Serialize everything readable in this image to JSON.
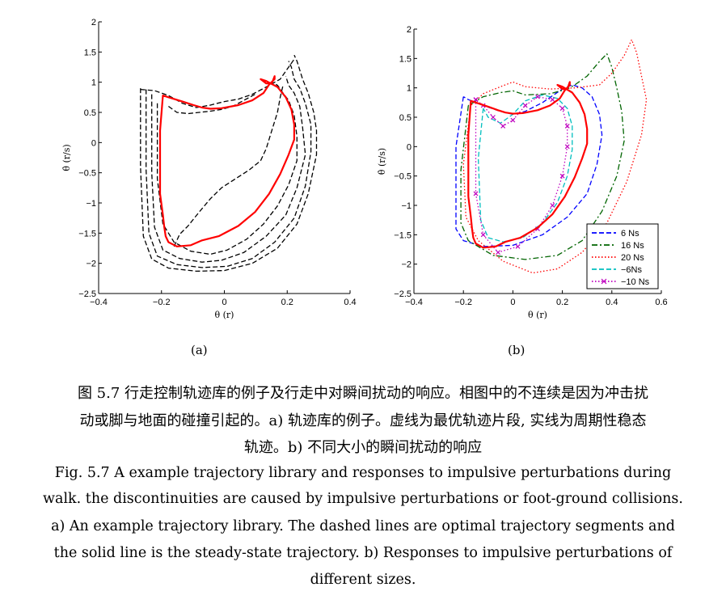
{
  "figure": {
    "sublabel_a": "(a)",
    "sublabel_b": "(b)",
    "caption_zh_1": "图 5.7 行走控制轨迹库的例子及行走中对瞬间扰动的响应。相图中的不连续是因为冲击扰",
    "caption_zh_2": "动或脚与地面的碰撞引起的。a) 轨迹库的例子。虚线为最优轨迹片段, 实线为周期性稳态",
    "caption_zh_3": "轨迹。b) 不同大小的瞬间扰动的响应",
    "caption_en_1": "Fig. 5.7 A example trajectory library and responses to impulsive perturbations during",
    "caption_en_2": "walk. the discontinuities are caused by impulsive perturbations or foot-ground collisions.",
    "caption_en_3": "a) An example trajectory library. The dashed lines are optimal trajectory segments and",
    "caption_en_4": "the solid line is the steady-state trajectory. b) Responses to impulsive perturbations of",
    "caption_en_5": "different sizes."
  },
  "colors": {
    "steady": "#ff0000",
    "library": "#000000",
    "s6": "#0000ff",
    "s16": "#006400",
    "s20": "#ff0000",
    "sm6": "#00bfbf",
    "sm10": "#bf00bf"
  },
  "chart_data": [
    {
      "type": "line",
      "xlabel": "θ (r)",
      "ylabel": "θ̇ (r/s)",
      "xlim": [
        -0.4,
        0.5
      ],
      "ylim": [
        -2.5,
        2
      ],
      "xticks": [
        "−0.4",
        "−0.2",
        "0",
        "0.2",
        "0.4"
      ],
      "yticks": [
        "−2.5",
        "−2",
        "−1.5",
        "−1",
        "−0.5",
        "0",
        "0.5",
        "1",
        "1.5",
        "2"
      ],
      "grid": false,
      "series": [
        {
          "style": "solid",
          "color": "red",
          "x": [
            -0.18,
            -0.17,
            -0.165,
            -0.16,
            -0.15,
            -0.12,
            -0.07,
            -0.03,
            0.03,
            0.1,
            0.16,
            0.21,
            0.25,
            0.28,
            0.3,
            0.3,
            0.29,
            0.27,
            0.24,
            0.2,
            0.18,
            0.2,
            0.22,
            0.23,
            0.23,
            0.21,
            0.19,
            0.15,
            0.1,
            0.04,
            0,
            -0.03,
            -0.06,
            -0.1,
            -0.15,
            -0.17,
            -0.18,
            -0.18
          ],
          "y": [
            -0.85,
            -1.2,
            -1.4,
            -1.55,
            -1.65,
            -1.72,
            -1.7,
            -1.62,
            -1.55,
            -1.38,
            -1.15,
            -0.85,
            -0.52,
            -0.2,
            0.05,
            0.3,
            0.55,
            0.75,
            0.92,
            1.02,
            1.05,
            0.98,
            0.98,
            1.1,
            1.05,
            0.96,
            0.82,
            0.7,
            0.62,
            0.57,
            0.56,
            0.58,
            0.62,
            0.68,
            0.75,
            0.78,
            0.2,
            -0.85
          ]
        },
        {
          "style": "dashed",
          "color": "black",
          "x": [
            -0.13,
            -0.11,
            -0.08,
            -0.04,
            0,
            0.04,
            0.09,
            0.14,
            0.18,
            0.2,
            0.22,
            0.24,
            0.25,
            0.26
          ],
          "y": [
            -1.72,
            -1.52,
            -1.38,
            -1.15,
            -0.93,
            -0.75,
            -0.6,
            -0.45,
            -0.3,
            -0.1,
            0.2,
            0.5,
            0.75,
            0.95
          ]
        },
        {
          "style": "dashed",
          "color": "black",
          "x": [
            -0.19,
            -0.19,
            -0.17,
            -0.13,
            -0.07,
            0,
            0.06,
            0.13,
            0.19,
            0.24,
            0.28,
            0.31,
            0.31,
            0.3,
            0.28,
            0.26,
            0.24,
            0.22
          ],
          "y": [
            0.65,
            -0.6,
            -1.35,
            -1.65,
            -1.8,
            -1.85,
            -1.78,
            -1.6,
            -1.35,
            -1.05,
            -0.7,
            -0.3,
            0.1,
            0.45,
            0.7,
            0.82,
            0.95,
            1.0
          ]
        },
        {
          "style": "dashed",
          "color": "black",
          "x": [
            -0.21,
            -0.21,
            -0.2,
            -0.17,
            -0.11,
            -0.03,
            0.04,
            0.12,
            0.2,
            0.27,
            0.31,
            0.34,
            0.33,
            0.32,
            0.3,
            0.28,
            0.27
          ],
          "y": [
            0.8,
            -0.5,
            -1.4,
            -1.78,
            -1.92,
            -1.98,
            -1.95,
            -1.82,
            -1.55,
            -1.2,
            -0.75,
            -0.2,
            0.25,
            0.6,
            0.82,
            0.95,
            1.1
          ]
        },
        {
          "style": "dashed",
          "color": "black",
          "x": [
            -0.23,
            -0.23,
            -0.22,
            -0.19,
            -0.12,
            -0.03,
            0.06,
            0.15,
            0.23,
            0.3,
            0.34,
            0.36,
            0.36,
            0.34,
            0.32,
            0.3,
            0.29,
            0.28
          ],
          "y": [
            0.88,
            -0.45,
            -1.5,
            -1.88,
            -2.02,
            -2.07,
            -2.05,
            -1.92,
            -1.65,
            -1.25,
            -0.72,
            -0.15,
            0.3,
            0.65,
            0.9,
            1.05,
            1.25,
            1.35
          ]
        },
        {
          "style": "dashed",
          "color": "black",
          "x": [
            -0.25,
            -0.25,
            -0.24,
            -0.21,
            -0.15,
            -0.05,
            0.05,
            0.15,
            0.24,
            0.31,
            0.35,
            0.38,
            0.38,
            0.37,
            0.35,
            0.33,
            0.31,
            0.3
          ],
          "y": [
            0.9,
            -0.4,
            -1.55,
            -1.93,
            -2.08,
            -2.13,
            -2.12,
            -2.0,
            -1.75,
            -1.35,
            -0.85,
            -0.2,
            0.2,
            0.5,
            0.82,
            1.05,
            1.35,
            1.45
          ]
        },
        {
          "style": "dashed",
          "color": "black",
          "x": [
            -0.25,
            -0.2,
            -0.15,
            -0.1,
            -0.05,
            0,
            0.05,
            0.1,
            0.15,
            0.2,
            0.25,
            0.28,
            0.3
          ],
          "y": [
            0.88,
            0.86,
            0.78,
            0.65,
            0.58,
            0.62,
            0.68,
            0.72,
            0.8,
            0.92,
            1.05,
            1.25,
            1.38
          ]
        },
        {
          "style": "dashed",
          "color": "black",
          "x": [
            -0.15,
            -0.12,
            -0.08,
            -0.04,
            0,
            0.04,
            0.08,
            0.12,
            0.16
          ],
          "y": [
            0.6,
            0.5,
            0.48,
            0.5,
            0.52,
            0.55,
            0.6,
            0.7,
            0.8
          ]
        }
      ]
    },
    {
      "type": "line",
      "xlabel": "θ (r)",
      "ylabel": "θ̇ (r/s)",
      "xlim": [
        -0.4,
        0.6
      ],
      "ylim": [
        -2.5,
        2
      ],
      "xticks": [
        "−0.4",
        "−0.2",
        "0",
        "0.2",
        "0.4",
        "0.6"
      ],
      "yticks": [
        "−2.5",
        "−2",
        "−1.5",
        "−1",
        "−0.5",
        "0",
        "0.5",
        "1",
        "1.5",
        "2"
      ],
      "grid": false,
      "legend": {
        "placement": "bottom-right",
        "entries": [
          "6 Ns",
          "16 Ns",
          "20 Ns",
          "−6Ns",
          "−10 Ns"
        ]
      },
      "series": [
        {
          "name": "6 Ns",
          "style": "dashed",
          "color": "blue",
          "x": [
            -0.2,
            -0.23,
            -0.23,
            -0.2,
            -0.12,
            0,
            0.12,
            0.22,
            0.3,
            0.34,
            0.36,
            0.35,
            0.32,
            0.28,
            0.24,
            0.2,
            0.12,
            0.05,
            0,
            -0.05,
            -0.12,
            -0.18,
            -0.2
          ],
          "y": [
            0.85,
            0,
            -1.4,
            -1.6,
            -1.7,
            -1.68,
            -1.5,
            -1.2,
            -0.8,
            -0.3,
            0.2,
            0.55,
            0.85,
            1.0,
            1.05,
            0.98,
            0.75,
            0.6,
            0.55,
            0.6,
            0.7,
            0.8,
            0.85
          ]
        },
        {
          "name": "16 Ns",
          "style": "dashdot",
          "color": "green",
          "x": [
            -0.18,
            -0.21,
            -0.21,
            -0.18,
            -0.08,
            0.05,
            0.18,
            0.28,
            0.36,
            0.42,
            0.45,
            0.44,
            0.42,
            0.4,
            0.38,
            0.35,
            0.3,
            0.25,
            0.22,
            0.15,
            0.05,
            0,
            -0.05,
            -0.12,
            -0.18
          ],
          "y": [
            0.7,
            -0.4,
            -1.3,
            -1.6,
            -1.85,
            -1.92,
            -1.85,
            -1.6,
            -1.1,
            -0.5,
            0.1,
            0.6,
            1.0,
            1.35,
            1.58,
            1.45,
            1.2,
            1.05,
            0.98,
            0.9,
            0.88,
            0.95,
            0.92,
            0.85,
            0.7
          ]
        },
        {
          "name": "20 Ns",
          "style": "dotted",
          "color": "red",
          "x": [
            -0.17,
            -0.2,
            -0.19,
            -0.14,
            -0.04,
            0.08,
            0.18,
            0.28,
            0.38,
            0.46,
            0.52,
            0.54,
            0.52,
            0.5,
            0.48,
            0.45,
            0.4,
            0.35,
            0.25,
            0.15,
            0.05,
            0,
            -0.05,
            -0.12,
            -0.17
          ],
          "y": [
            0.7,
            -0.3,
            -1.2,
            -1.6,
            -1.95,
            -2.15,
            -2.08,
            -1.8,
            -1.3,
            -0.6,
            0.2,
            0.8,
            1.2,
            1.6,
            1.82,
            1.55,
            1.25,
            1.05,
            1.0,
            0.98,
            1.02,
            1.1,
            1.02,
            0.9,
            0.7
          ]
        },
        {
          "name": "−6Ns",
          "style": "dashed",
          "color": "cyan",
          "x": [
            -0.12,
            -0.14,
            -0.13,
            -0.1,
            -0.04,
            0.04,
            0.12,
            0.18,
            0.22,
            0.24,
            0.24,
            0.22,
            0.18,
            0.12,
            0.05,
            0,
            -0.05,
            -0.1,
            -0.12
          ],
          "y": [
            0.65,
            -0.2,
            -1.25,
            -1.55,
            -1.62,
            -1.55,
            -1.3,
            -0.95,
            -0.5,
            -0.05,
            0.35,
            0.65,
            0.82,
            0.88,
            0.78,
            0.55,
            0.4,
            0.5,
            0.65
          ]
        },
        {
          "name": "−10 Ns",
          "style": "dotted-cross",
          "color": "magenta",
          "x": [
            -0.15,
            -0.15,
            -0.12,
            -0.06,
            0.02,
            0.1,
            0.16,
            0.2,
            0.22,
            0.22,
            0.2,
            0.16,
            0.1,
            0.05,
            0,
            -0.04,
            -0.08,
            -0.12,
            -0.15
          ],
          "y": [
            0.8,
            -0.8,
            -1.5,
            -1.8,
            -1.7,
            -1.4,
            -1.0,
            -0.5,
            0.0,
            0.35,
            0.65,
            0.8,
            0.85,
            0.7,
            0.45,
            0.35,
            0.5,
            0.7,
            0.8
          ]
        },
        {
          "name": "steady",
          "style": "solid",
          "color": "red",
          "x": [
            -0.18,
            -0.17,
            -0.165,
            -0.16,
            -0.15,
            -0.12,
            -0.07,
            -0.03,
            0.03,
            0.1,
            0.16,
            0.21,
            0.25,
            0.28,
            0.3,
            0.3,
            0.29,
            0.27,
            0.24,
            0.2,
            0.18,
            0.2,
            0.22,
            0.23,
            0.23,
            0.21,
            0.19,
            0.15,
            0.1,
            0.04,
            0,
            -0.03,
            -0.06,
            -0.1,
            -0.15,
            -0.17,
            -0.18,
            -0.18
          ],
          "y": [
            -0.85,
            -1.2,
            -1.4,
            -1.55,
            -1.65,
            -1.72,
            -1.7,
            -1.62,
            -1.55,
            -1.38,
            -1.15,
            -0.85,
            -0.52,
            -0.2,
            0.05,
            0.3,
            0.55,
            0.75,
            0.92,
            1.02,
            1.05,
            0.98,
            0.98,
            1.1,
            1.05,
            0.96,
            0.82,
            0.7,
            0.62,
            0.57,
            0.56,
            0.58,
            0.62,
            0.68,
            0.75,
            0.78,
            0.2,
            -0.85
          ]
        }
      ]
    }
  ]
}
